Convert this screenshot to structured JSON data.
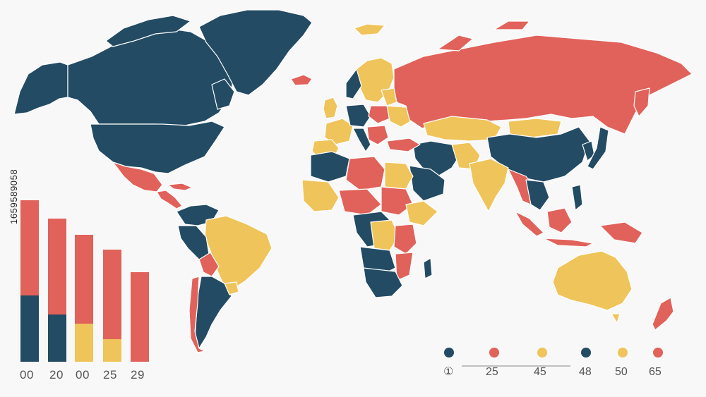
{
  "colors": {
    "navy": "#234b63",
    "red": "#e0625a",
    "yellow": "#efc45a",
    "background": "#f8f8f8"
  },
  "side_text": "1659589058",
  "bar_chart": {
    "labels": [
      "00",
      "20",
      "00",
      "25",
      "29"
    ],
    "bars": [
      {
        "top": "red",
        "top_fraction": 0.59,
        "bottom": "navy",
        "bottom_fraction": 0.41
      },
      {
        "top": "red",
        "top_fraction": 0.67,
        "bottom": "navy",
        "bottom_fraction": 0.33
      },
      {
        "top": "red",
        "top_fraction": 0.7,
        "bottom": "yellow",
        "bottom_fraction": 0.3
      },
      {
        "top": "red",
        "top_fraction": 0.8,
        "bottom": "yellow",
        "bottom_fraction": 0.2
      },
      {
        "top": "red",
        "top_fraction": 1.0,
        "bottom": "none",
        "bottom_fraction": 0.0
      }
    ]
  },
  "legend": [
    {
      "color": "navy",
      "label": "①"
    },
    {
      "color": "red",
      "label": "25"
    },
    {
      "color": "yellow",
      "label": "45"
    },
    {
      "color": "navy",
      "label": "48"
    },
    {
      "color": "yellow",
      "label": "50"
    },
    {
      "color": "red",
      "label": "65"
    }
  ]
}
